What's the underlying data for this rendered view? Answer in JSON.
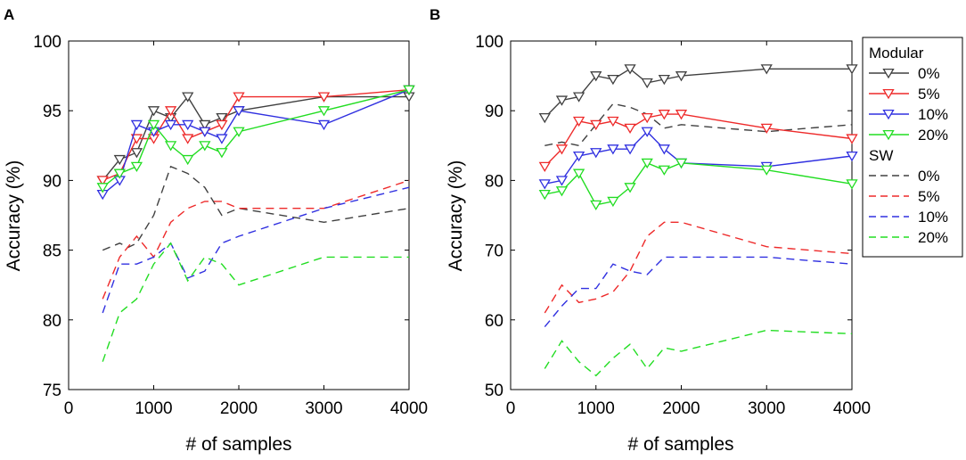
{
  "figure": {
    "panels": [
      {
        "label": "A"
      },
      {
        "label": "B"
      }
    ],
    "legend": {
      "groups": [
        {
          "title": "Modular",
          "style": "solid-marker",
          "entries": [
            {
              "label": "0%",
              "color": "#404040"
            },
            {
              "label": "5%",
              "color": "#ee2a2a"
            },
            {
              "label": "10%",
              "color": "#3030e0"
            },
            {
              "label": "20%",
              "color": "#22dd22"
            }
          ]
        },
        {
          "title": "SW",
          "style": "dashed",
          "entries": [
            {
              "label": "0%",
              "color": "#404040"
            },
            {
              "label": "5%",
              "color": "#ee2a2a"
            },
            {
              "label": "10%",
              "color": "#3030e0"
            },
            {
              "label": "20%",
              "color": "#22dd22"
            }
          ]
        }
      ]
    }
  },
  "chart_data": [
    {
      "type": "line",
      "panel": "A",
      "title": "",
      "xlabel": "# of samples",
      "ylabel": "Accuracy (%)",
      "xlim": [
        0,
        4000
      ],
      "ylim": [
        75,
        100
      ],
      "xticks": [
        0,
        1000,
        2000,
        3000,
        4000
      ],
      "yticks": [
        75,
        80,
        85,
        90,
        95,
        100
      ],
      "series": [
        {
          "name": "Modular 0%",
          "color": "#404040",
          "style": "solid-marker",
          "x": [
            400,
            600,
            800,
            1000,
            1200,
            1400,
            1600,
            1800,
            2000,
            3000,
            4000
          ],
          "y": [
            90,
            91.5,
            92,
            95,
            94.5,
            96,
            94,
            94.5,
            95,
            96,
            96
          ]
        },
        {
          "name": "Modular 5%",
          "color": "#ee2a2a",
          "style": "solid-marker",
          "x": [
            400,
            600,
            800,
            1000,
            1200,
            1400,
            1600,
            1800,
            2000,
            3000,
            4000
          ],
          "y": [
            90,
            90.5,
            93,
            93,
            95,
            93,
            93.5,
            94,
            96,
            96,
            96.5
          ]
        },
        {
          "name": "Modular 10%",
          "color": "#3030e0",
          "style": "solid-marker",
          "x": [
            400,
            600,
            800,
            1000,
            1200,
            1400,
            1600,
            1800,
            2000,
            3000,
            4000
          ],
          "y": [
            89,
            90,
            94,
            93.5,
            94,
            94,
            93.5,
            93,
            95,
            94,
            96.5
          ]
        },
        {
          "name": "Modular 20%",
          "color": "#22dd22",
          "style": "solid-marker",
          "x": [
            400,
            600,
            800,
            1000,
            1200,
            1400,
            1600,
            1800,
            2000,
            3000,
            4000
          ],
          "y": [
            89.5,
            90.5,
            91,
            94,
            92.5,
            91.5,
            92.5,
            92,
            93.5,
            95,
            96.5
          ]
        },
        {
          "name": "SW 0%",
          "color": "#404040",
          "style": "dashed",
          "x": [
            400,
            600,
            700,
            800,
            1000,
            1200,
            1400,
            1600,
            1800,
            2000,
            3000,
            4000
          ],
          "y": [
            85,
            85.5,
            85.2,
            85.5,
            87.5,
            91,
            90.5,
            89.5,
            87.5,
            88,
            87,
            88
          ]
        },
        {
          "name": "SW 5%",
          "color": "#ee2a2a",
          "style": "dashed",
          "x": [
            400,
            600,
            800,
            1000,
            1200,
            1400,
            1600,
            1800,
            2000,
            3000,
            4000
          ],
          "y": [
            81.5,
            84.5,
            86,
            84.5,
            87,
            88,
            88.5,
            88.5,
            88,
            88,
            90
          ]
        },
        {
          "name": "SW 10%",
          "color": "#3030e0",
          "style": "dashed",
          "x": [
            400,
            600,
            800,
            1000,
            1200,
            1400,
            1600,
            1800,
            2000,
            3000,
            4000
          ],
          "y": [
            80.5,
            84,
            84,
            84.5,
            85.5,
            83,
            83.5,
            85.5,
            86,
            88,
            89.5
          ]
        },
        {
          "name": "SW 20%",
          "color": "#22dd22",
          "style": "dashed",
          "x": [
            400,
            600,
            800,
            1000,
            1200,
            1400,
            1600,
            1800,
            2000,
            3000,
            4000
          ],
          "y": [
            77,
            80.5,
            81.5,
            84,
            85.5,
            82.8,
            84.5,
            84,
            82.5,
            84.5,
            84.5
          ]
        }
      ]
    },
    {
      "type": "line",
      "panel": "B",
      "title": "",
      "xlabel": "# of samples",
      "ylabel": "Accuracy (%)",
      "xlim": [
        0,
        4000
      ],
      "ylim": [
        50,
        100
      ],
      "xticks": [
        0,
        1000,
        2000,
        3000,
        4000
      ],
      "yticks": [
        50,
        60,
        70,
        80,
        90,
        100
      ],
      "series": [
        {
          "name": "Modular 0%",
          "color": "#404040",
          "style": "solid-marker",
          "x": [
            400,
            600,
            800,
            1000,
            1200,
            1400,
            1600,
            1800,
            2000,
            3000,
            4000
          ],
          "y": [
            89,
            91.5,
            92,
            95,
            94.5,
            96,
            94,
            94.5,
            95,
            96,
            96
          ]
        },
        {
          "name": "Modular 5%",
          "color": "#ee2a2a",
          "style": "solid-marker",
          "x": [
            400,
            600,
            800,
            1000,
            1200,
            1400,
            1600,
            1800,
            2000,
            3000,
            4000
          ],
          "y": [
            82,
            84.5,
            88.5,
            88,
            88.5,
            87.5,
            89,
            89.5,
            89.5,
            87.5,
            86
          ]
        },
        {
          "name": "Modular 10%",
          "color": "#3030e0",
          "style": "solid-marker",
          "x": [
            400,
            600,
            800,
            1000,
            1200,
            1400,
            1600,
            1800,
            2000,
            3000,
            4000
          ],
          "y": [
            79.5,
            80,
            83.5,
            84,
            84.5,
            84.5,
            87,
            84.5,
            82.5,
            82,
            83.5
          ]
        },
        {
          "name": "Modular 20%",
          "color": "#22dd22",
          "style": "solid-marker",
          "x": [
            400,
            600,
            800,
            1000,
            1200,
            1400,
            1600,
            1800,
            2000,
            3000,
            4000
          ],
          "y": [
            78,
            78.5,
            81,
            76.5,
            77,
            79,
            82.5,
            81.5,
            82.5,
            81.5,
            79.5
          ]
        },
        {
          "name": "SW 0%",
          "color": "#404040",
          "style": "dashed",
          "x": [
            400,
            600,
            800,
            1000,
            1200,
            1400,
            1600,
            1800,
            2000,
            3000,
            4000
          ],
          "y": [
            85,
            85.5,
            85,
            88,
            91,
            90.5,
            89.5,
            87.5,
            88,
            87,
            88
          ]
        },
        {
          "name": "SW 5%",
          "color": "#ee2a2a",
          "style": "dashed",
          "x": [
            400,
            600,
            800,
            1000,
            1200,
            1400,
            1600,
            1800,
            2000,
            3000,
            4000
          ],
          "y": [
            61,
            65,
            62.5,
            63,
            64,
            67,
            72,
            74,
            74,
            70.5,
            69.5
          ]
        },
        {
          "name": "SW 10%",
          "color": "#3030e0",
          "style": "dashed",
          "x": [
            400,
            600,
            800,
            1000,
            1200,
            1400,
            1600,
            1800,
            2000,
            3000,
            4000
          ],
          "y": [
            59,
            62,
            64.5,
            64.5,
            68,
            67,
            66.5,
            69,
            69,
            69,
            68
          ]
        },
        {
          "name": "SW 20%",
          "color": "#22dd22",
          "style": "dashed",
          "x": [
            400,
            600,
            800,
            1000,
            1200,
            1400,
            1600,
            1800,
            2000,
            3000,
            4000
          ],
          "y": [
            53,
            57,
            54,
            52,
            54.5,
            56.5,
            53,
            56,
            55.5,
            58.5,
            58
          ]
        }
      ]
    }
  ]
}
